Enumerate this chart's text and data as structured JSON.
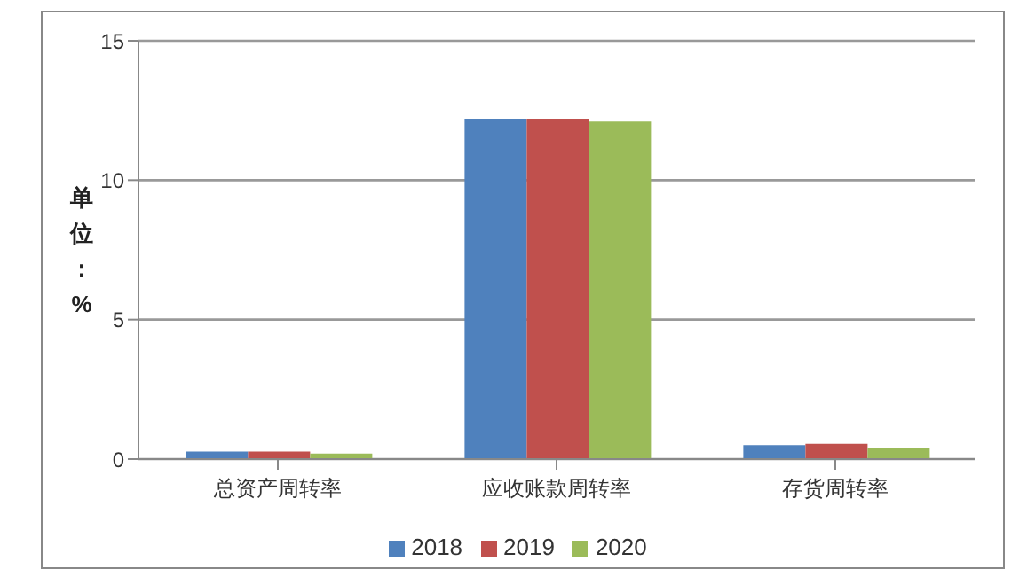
{
  "chart_data": {
    "type": "bar",
    "categories": [
      "总资产周转率",
      "应收账款周转率",
      "存货周转率"
    ],
    "ylabel": "单位：%",
    "series": [
      {
        "name": "2018",
        "color": "#4f81bd",
        "values": [
          0.27,
          12.2,
          0.5
        ]
      },
      {
        "name": "2019",
        "color": "#c0504d",
        "values": [
          0.27,
          12.2,
          0.55
        ]
      },
      {
        "name": "2020",
        "color": "#9bbb59",
        "values": [
          0.2,
          12.1,
          0.4
        ]
      }
    ],
    "ylim": [
      0,
      15
    ],
    "yticks": [
      0,
      5,
      10,
      15
    ],
    "grid": "y",
    "legend": "bottom"
  }
}
